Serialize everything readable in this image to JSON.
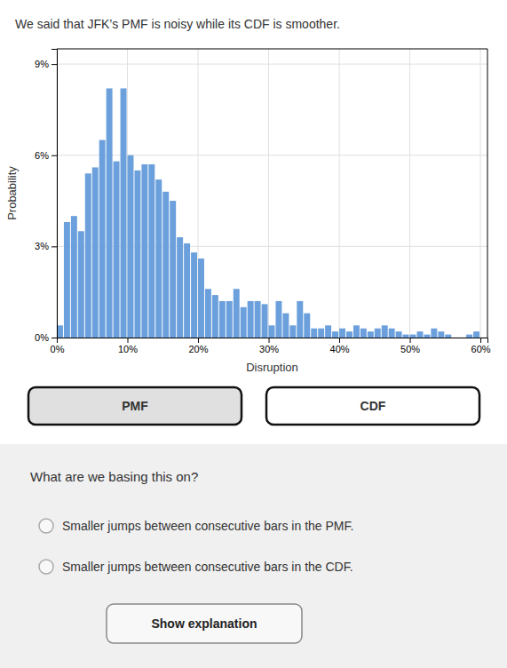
{
  "chart_data": {
    "type": "histogram",
    "title": "We said that JFK’s PMF is noisy while its CDF is smoother.",
    "xlabel": "Disruption",
    "ylabel": "Probability",
    "bins": [
      0.0,
      0.01,
      0.02,
      0.03,
      0.04,
      0.05,
      0.06,
      0.07,
      0.08,
      0.09,
      0.1,
      0.11,
      0.12,
      0.13,
      0.14,
      0.15,
      0.16,
      0.17,
      0.18,
      0.19,
      0.2,
      0.21,
      0.22,
      0.23,
      0.24,
      0.25,
      0.26,
      0.27,
      0.28,
      0.29,
      0.3,
      0.31,
      0.32,
      0.33,
      0.34,
      0.35,
      0.36,
      0.37,
      0.38,
      0.39,
      0.4,
      0.41,
      0.42,
      0.43,
      0.44,
      0.45,
      0.46,
      0.47,
      0.48,
      0.49,
      0.5,
      0.51,
      0.52,
      0.53,
      0.54,
      0.55,
      0.56,
      0.57,
      0.58,
      0.59,
      0.6
    ],
    "values": [
      0.004,
      0.038,
      0.04,
      0.035,
      0.054,
      0.056,
      0.065,
      0.082,
      0.058,
      0.082,
      0.06,
      0.055,
      0.057,
      0.057,
      0.052,
      0.048,
      0.045,
      0.033,
      0.031,
      0.028,
      0.026,
      0.016,
      0.014,
      0.012,
      0.012,
      0.016,
      0.01,
      0.012,
      0.012,
      0.011,
      0.004,
      0.012,
      0.008,
      0.004,
      0.012,
      0.008,
      0.003,
      0.003,
      0.004,
      0.002,
      0.003,
      0.002,
      0.004,
      0.003,
      0.002,
      0.003,
      0.004,
      0.003,
      0.002,
      0.001,
      0.001,
      0.002,
      0.001,
      0.003,
      0.002,
      0.001,
      0.0,
      0.0,
      0.001,
      0.002
    ],
    "color": "#6ca0dc",
    "xlim": [
      0.0,
      0.61
    ],
    "ylim": [
      0.0,
      0.095
    ],
    "xticks": [
      {
        "value": 0.0,
        "label": "0%"
      },
      {
        "value": 0.1,
        "label": "10%"
      },
      {
        "value": 0.2,
        "label": "20%"
      },
      {
        "value": 0.3,
        "label": "30%"
      },
      {
        "value": 0.4,
        "label": "40%"
      },
      {
        "value": 0.5,
        "label": "50%"
      },
      {
        "value": 0.6,
        "label": "60%"
      }
    ],
    "yticks": [
      {
        "value": 0.0,
        "label": "0%"
      },
      {
        "value": 0.03,
        "label": "3%"
      },
      {
        "value": 0.06,
        "label": "6%"
      },
      {
        "value": 0.09,
        "label": "9%"
      }
    ],
    "grid": true
  },
  "page": {
    "buttons": [
      "PMF",
      "CDF"
    ],
    "question": "What are we basing this on?",
    "options": [
      "Smaller jumps between consecutive bars in the PMF.",
      "Smaller jumps between consecutive bars in the CDF."
    ],
    "action": "Show explanation"
  }
}
